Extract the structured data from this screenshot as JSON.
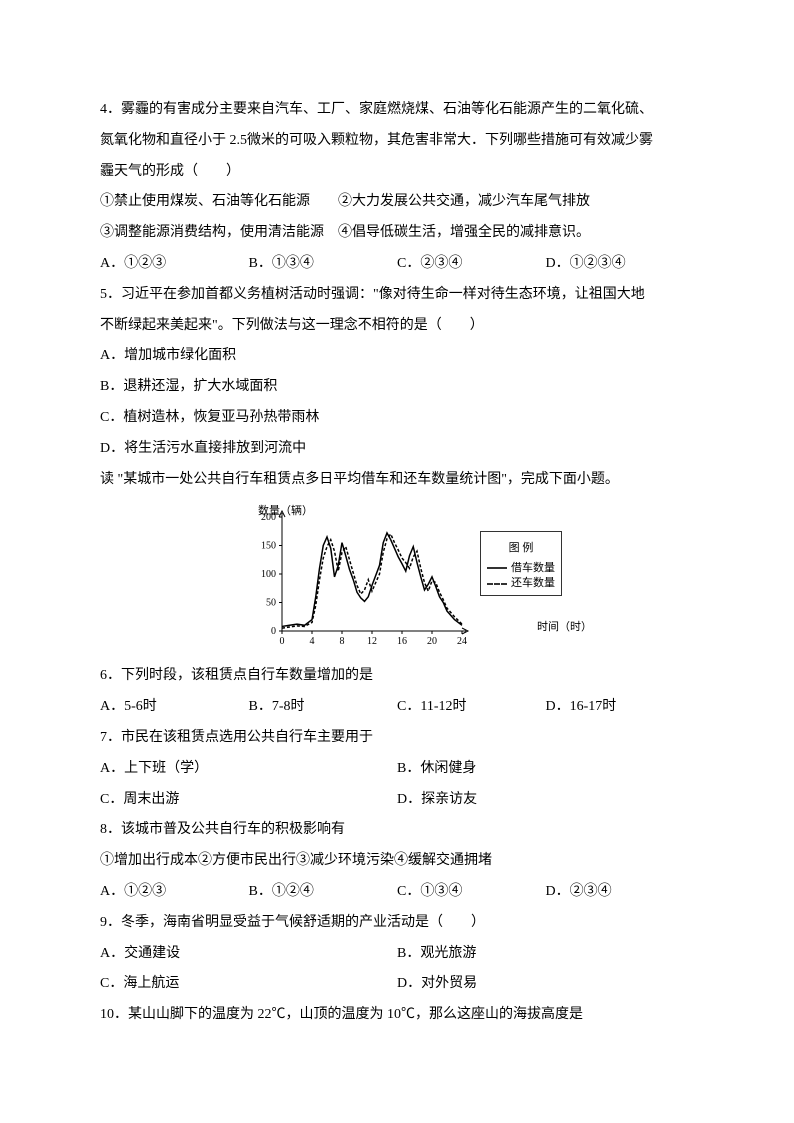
{
  "q4": {
    "stem1": "4．雾霾的有害成分主要来自汽车、工厂、家庭燃烧煤、石油等化石能源产生的二氧化硫、",
    "stem2": "氮氧化物和直径小于 2.5微米的可吸入颗粒物，其危害非常大．下列哪些措施可有效减少雾",
    "stem3": "霾天气的形成（　　）",
    "item1": "①禁止使用煤炭、石油等化石能源　　②大力发展公共交通，减少汽车尾气排放",
    "item2": "③调整能源消费结构，使用清洁能源　④倡导低碳生活，增强全民的减排意识。",
    "optA": "A．①②③",
    "optB": "B．①③④",
    "optC": "C．②③④",
    "optD": "D．①②③④"
  },
  "q5": {
    "stem1": "5．习近平在参加首都义务植树活动时强调：\"像对待生命一样对待生态环境，让祖国大地",
    "stem2": "不断绿起来美起来\"。下列做法与这一理念不相符的是（　　）",
    "optA": "A．增加城市绿化面积",
    "optB": "B．退耕还湿，扩大水域面积",
    "optC": "C．植树造林，恢复亚马孙热带雨林",
    "optD": "D．将生活污水直接排放到河流中"
  },
  "note": "读 \"某城市一处公共自行车租赁点多日平均借车和还车数量统计图\"，完成下面小题。",
  "chart": {
    "type": "line",
    "y_label": "数量（辆）",
    "x_label": "时间（时）",
    "ylim": [
      0,
      200
    ],
    "ytick_step": 50,
    "yticks": [
      "0",
      "50",
      "100",
      "150",
      "200"
    ],
    "xlim": [
      0,
      24
    ],
    "xtick_step": 4,
    "xticks": [
      "0",
      "4",
      "8",
      "12",
      "16",
      "20",
      "24"
    ],
    "legend_title": "图  例",
    "legend_items": [
      {
        "label": "借车数量",
        "dash": "solid"
      },
      {
        "label": "还车数量",
        "dash": "dashed"
      }
    ],
    "series": [
      {
        "name": "借车数量",
        "dash": "solid",
        "color": "#000000",
        "width": 1.5,
        "points": [
          [
            0,
            8
          ],
          [
            1,
            10
          ],
          [
            2,
            12
          ],
          [
            3,
            10
          ],
          [
            4,
            20
          ],
          [
            4.5,
            60
          ],
          [
            5,
            110
          ],
          [
            5.5,
            150
          ],
          [
            6,
            165
          ],
          [
            6.5,
            145
          ],
          [
            7,
            95
          ],
          [
            7.5,
            115
          ],
          [
            8,
            155
          ],
          [
            8.5,
            132
          ],
          [
            9,
            108
          ],
          [
            9.5,
            90
          ],
          [
            10,
            68
          ],
          [
            10.5,
            58
          ],
          [
            11,
            52
          ],
          [
            11.5,
            60
          ],
          [
            12,
            80
          ],
          [
            13,
            115
          ],
          [
            13.5,
            155
          ],
          [
            14,
            172
          ],
          [
            14.5,
            160
          ],
          [
            15,
            145
          ],
          [
            15.5,
            130
          ],
          [
            16,
            118
          ],
          [
            16.5,
            105
          ],
          [
            17,
            132
          ],
          [
            17.5,
            148
          ],
          [
            18,
            120
          ],
          [
            18.5,
            95
          ],
          [
            19,
            72
          ],
          [
            19.5,
            82
          ],
          [
            20,
            95
          ],
          [
            20.5,
            78
          ],
          [
            21,
            60
          ],
          [
            21.5,
            50
          ],
          [
            22,
            35
          ],
          [
            23,
            20
          ],
          [
            24,
            10
          ]
        ]
      },
      {
        "name": "还车数量",
        "dash": "dashed",
        "color": "#000000",
        "width": 1.5,
        "points": [
          [
            0,
            5
          ],
          [
            1,
            7
          ],
          [
            2,
            9
          ],
          [
            3,
            8
          ],
          [
            4,
            15
          ],
          [
            4.5,
            45
          ],
          [
            5,
            90
          ],
          [
            5.5,
            128
          ],
          [
            6,
            148
          ],
          [
            6.5,
            160
          ],
          [
            7,
            140
          ],
          [
            7.5,
            105
          ],
          [
            8,
            138
          ],
          [
            8.5,
            148
          ],
          [
            9,
            125
          ],
          [
            9.5,
            102
          ],
          [
            10,
            80
          ],
          [
            10.5,
            65
          ],
          [
            11,
            72
          ],
          [
            11.5,
            90
          ],
          [
            12,
            70
          ],
          [
            13,
            100
          ],
          [
            13.5,
            138
          ],
          [
            14,
            162
          ],
          [
            14.5,
            170
          ],
          [
            15,
            155
          ],
          [
            15.5,
            142
          ],
          [
            16,
            128
          ],
          [
            16.5,
            120
          ],
          [
            17,
            110
          ],
          [
            17.5,
            130
          ],
          [
            18,
            140
          ],
          [
            18.5,
            110
          ],
          [
            19,
            85
          ],
          [
            19.5,
            70
          ],
          [
            20,
            88
          ],
          [
            20.5,
            85
          ],
          [
            21,
            68
          ],
          [
            21.5,
            55
          ],
          [
            22,
            40
          ],
          [
            23,
            25
          ],
          [
            24,
            12
          ]
        ]
      }
    ],
    "background_color": "#ffffff",
    "axis_color": "#000000",
    "tick_fontsize": 10
  },
  "q6": {
    "stem": "6．下列时段，该租赁点自行车数量增加的是",
    "optA": "A．5-6时",
    "optB": "B．7-8时",
    "optC": "C．11-12时",
    "optD": "D．16-17时"
  },
  "q7": {
    "stem": "7．市民在该租赁点选用公共自行车主要用于",
    "optA": "A．上下班（学）",
    "optB": "B．休闲健身",
    "optC": "C．周末出游",
    "optD": "D．探亲访友"
  },
  "q8": {
    "stem": "8．该城市普及公共自行车的积极影响有",
    "items": "①增加出行成本②方便市民出行③减少环境污染④缓解交通拥堵",
    "optA": "A．①②③",
    "optB": "B．①②④",
    "optC": "C．①③④",
    "optD": "D．②③④"
  },
  "q9": {
    "stem": "9．冬季，海南省明显受益于气候舒适期的产业活动是（　　）",
    "optA": "A．交通建设",
    "optB": "B．观光旅游",
    "optC": "C．海上航运",
    "optD": "D．对外贸易"
  },
  "q10": {
    "stem": "10．某山山脚下的温度为 22℃，山顶的温度为 10℃，那么这座山的海拔高度是"
  }
}
